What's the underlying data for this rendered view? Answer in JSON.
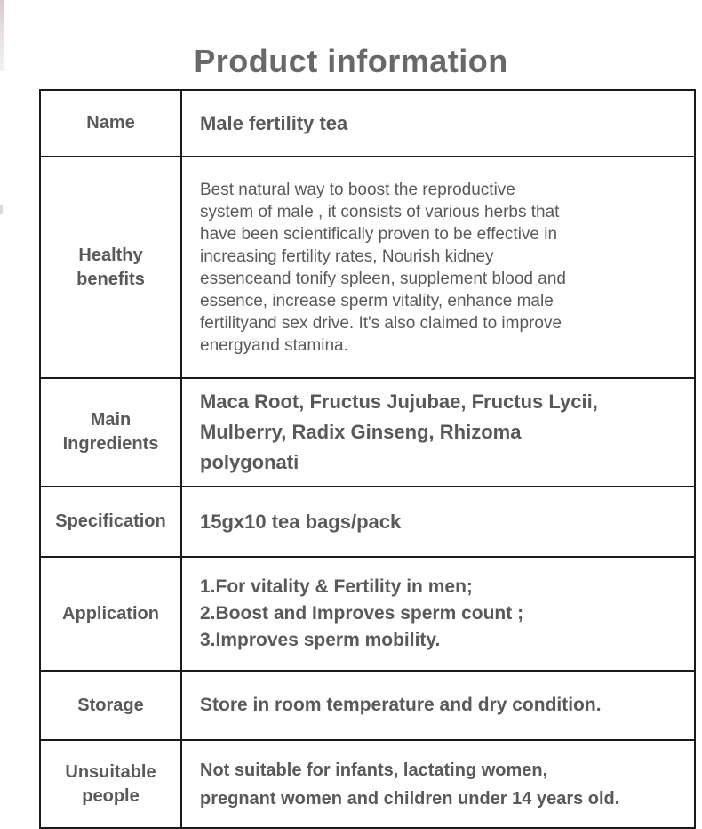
{
  "page": {
    "title": "Product information"
  },
  "colors": {
    "background": "#ffffff",
    "text": "#58595b",
    "title": "#67686a",
    "border": "#1a1a1a",
    "edge_artifact": "#c2abab"
  },
  "table": {
    "rows": [
      {
        "label": "Name",
        "value": "Male fertility tea"
      },
      {
        "label": "Healthy\nbenefits",
        "value": "Best natural way to boost the reproductive\nsystem of male , it consists of various herbs that\nhave been scientifically proven to be effective in\nincreasing fertility rates, Nourish kidney\nessenceand tonify spleen, supplement blood and\nessence, increase sperm vitality, enhance male\nfertilityand sex drive. It's also claimed to improve\nenergyand stamina."
      },
      {
        "label": "Main\nIngredients",
        "value": "Maca Root, Fructus Jujubae, Fructus Lycii,\nMulberry, Radix Ginseng, Rhizoma\npolygonati"
      },
      {
        "label": "Specification",
        "value": "15gx10 tea bags/pack"
      },
      {
        "label": "Application",
        "value": "1.For vitality & Fertility in men;\n2.Boost and Improves sperm count ;\n3.Improves sperm mobility."
      },
      {
        "label": "Storage",
        "value": "Store in room temperature and dry condition."
      },
      {
        "label": "Unsuitable\npeople",
        "value": "Not suitable for infants, lactating women,\npregnant women and children under 14 years old."
      }
    ]
  }
}
